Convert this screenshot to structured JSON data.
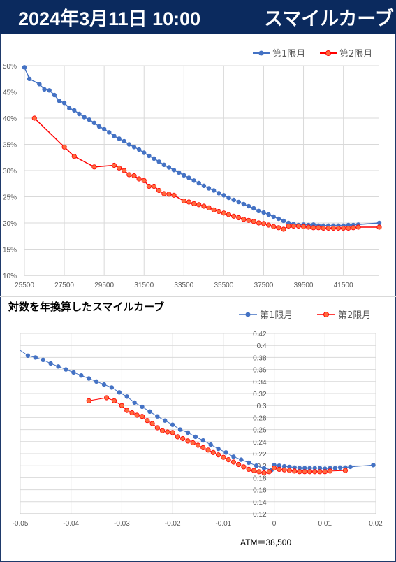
{
  "header": {
    "date": "2024年3月11日 10:00",
    "title": "スマイルカーブ"
  },
  "footer": {
    "atm": "ATM＝38,500"
  },
  "colors": {
    "first": "#4472c4",
    "second": "#ff0000",
    "second_fill": "#ff6a3d",
    "header_bg": "#0b2a5e",
    "grid": "#d9d9d9"
  },
  "chart_data": [
    {
      "type": "line",
      "title": "",
      "legend_position": "top-right",
      "xlim": [
        25500,
        43300
      ],
      "ylim": [
        0.1,
        0.5
      ],
      "x_ticks": [
        25500,
        27500,
        29500,
        31500,
        33500,
        35500,
        37500,
        39500,
        41500
      ],
      "x_tick_labels": [
        "25500",
        "27500",
        "29500",
        "31500",
        "33500",
        "35500",
        "37500",
        "39500",
        "41500"
      ],
      "y_ticks": [
        0.1,
        0.15,
        0.2,
        0.25,
        0.3,
        0.35,
        0.4,
        0.45,
        0.5
      ],
      "y_tick_labels": [
        "10%",
        "15%",
        "20%",
        "25%",
        "30%",
        "35%",
        "40%",
        "45%",
        "50%"
      ],
      "series": [
        {
          "name": "第1限月",
          "x": [
            25500,
            25750,
            26250,
            26500,
            26750,
            27000,
            27250,
            27500,
            27750,
            28000,
            28250,
            28500,
            28750,
            29000,
            29250,
            29500,
            29750,
            30000,
            30250,
            30500,
            30750,
            31000,
            31250,
            31500,
            31750,
            32000,
            32250,
            32500,
            32750,
            33000,
            33250,
            33500,
            33750,
            34000,
            34250,
            34500,
            34750,
            35000,
            35250,
            35500,
            35750,
            36000,
            36250,
            36500,
            36750,
            37000,
            37250,
            37500,
            37750,
            38000,
            38250,
            38500,
            38750,
            39000,
            39250,
            39500,
            39750,
            40000,
            40250,
            40500,
            40750,
            41000,
            41250,
            41500,
            41750,
            42000,
            42250,
            43300
          ],
          "y": [
            0.497,
            0.475,
            0.465,
            0.455,
            0.453,
            0.444,
            0.433,
            0.429,
            0.419,
            0.415,
            0.408,
            0.402,
            0.397,
            0.391,
            0.384,
            0.379,
            0.373,
            0.366,
            0.361,
            0.356,
            0.35,
            0.345,
            0.34,
            0.334,
            0.328,
            0.323,
            0.317,
            0.311,
            0.306,
            0.301,
            0.296,
            0.291,
            0.286,
            0.281,
            0.276,
            0.271,
            0.266,
            0.262,
            0.257,
            0.253,
            0.248,
            0.244,
            0.24,
            0.236,
            0.232,
            0.228,
            0.223,
            0.22,
            0.216,
            0.212,
            0.208,
            0.204,
            0.2,
            0.198,
            0.196,
            0.197,
            0.196,
            0.197,
            0.195,
            0.195,
            0.195,
            0.195,
            0.195,
            0.195,
            0.196,
            0.196,
            0.197,
            0.2
          ]
        },
        {
          "name": "第2限月",
          "x": [
            26000,
            27500,
            28000,
            29000,
            30000,
            30250,
            30500,
            30750,
            31000,
            31250,
            31500,
            31750,
            32000,
            32250,
            32500,
            32750,
            33000,
            33500,
            33750,
            34000,
            34250,
            34500,
            34750,
            35000,
            35250,
            35500,
            35750,
            36000,
            36250,
            36500,
            36750,
            37000,
            37250,
            37500,
            37750,
            38000,
            38250,
            38500,
            38750,
            39000,
            39250,
            39500,
            39750,
            40000,
            40250,
            40500,
            40750,
            41000,
            41250,
            41500,
            41750,
            42000,
            42250,
            43300
          ],
          "y": [
            0.4,
            0.345,
            0.327,
            0.307,
            0.31,
            0.305,
            0.3,
            0.292,
            0.29,
            0.284,
            0.281,
            0.27,
            0.27,
            0.262,
            0.256,
            0.255,
            0.253,
            0.242,
            0.24,
            0.237,
            0.235,
            0.232,
            0.229,
            0.225,
            0.222,
            0.219,
            0.216,
            0.213,
            0.21,
            0.207,
            0.205,
            0.203,
            0.2,
            0.199,
            0.196,
            0.193,
            0.191,
            0.188,
            0.194,
            0.194,
            0.194,
            0.193,
            0.192,
            0.191,
            0.191,
            0.19,
            0.19,
            0.19,
            0.19,
            0.19,
            0.19,
            0.191,
            0.192,
            0.192
          ]
        }
      ]
    },
    {
      "type": "scatter",
      "title": "対数を年換算したスマイルカーブ",
      "legend_position": "top-right",
      "xlim": [
        -0.05,
        0.02
      ],
      "ylim": [
        0.12,
        0.42
      ],
      "x_ticks": [
        -0.05,
        -0.04,
        -0.03,
        -0.02,
        -0.01,
        0,
        0.01,
        0.02
      ],
      "x_tick_labels": [
        "-0.05",
        "-0.04",
        "-0.03",
        "-0.02",
        "-0.01",
        "0",
        "0.01",
        "0.02"
      ],
      "y_ticks": [
        0.12,
        0.14,
        0.16,
        0.18,
        0.2,
        0.22,
        0.24,
        0.26,
        0.28,
        0.3,
        0.32,
        0.34,
        0.36,
        0.38,
        0.4,
        0.42
      ],
      "y_tick_labels": [
        "0.12",
        "0.14",
        "0.16",
        "0.18",
        "0.2",
        "0.22",
        "0.24",
        "0.26",
        "0.28",
        "0.3",
        "0.32",
        "0.34",
        "0.36",
        "0.38",
        "0.4",
        "0.42"
      ],
      "series": [
        {
          "name": "第1限月",
          "x": [
            -0.05,
            -0.0485,
            -0.047,
            -0.0455,
            -0.044,
            -0.0425,
            -0.041,
            -0.0395,
            -0.038,
            -0.0365,
            -0.035,
            -0.0335,
            -0.032,
            -0.0305,
            -0.029,
            -0.0275,
            -0.026,
            -0.0245,
            -0.023,
            -0.0215,
            -0.02,
            -0.0185,
            -0.017,
            -0.0155,
            -0.014,
            -0.0125,
            -0.011,
            -0.0095,
            -0.008,
            -0.0065,
            -0.005,
            -0.0035,
            -0.002,
            -0.0005,
            0.0,
            0.001,
            0.002,
            0.003,
            0.004,
            0.005,
            0.006,
            0.007,
            0.008,
            0.009,
            0.01,
            0.011,
            0.012,
            0.013,
            0.014,
            0.015,
            0.0195
          ],
          "y": [
            0.392,
            0.383,
            0.38,
            0.376,
            0.37,
            0.365,
            0.36,
            0.355,
            0.35,
            0.345,
            0.34,
            0.335,
            0.33,
            0.322,
            0.315,
            0.305,
            0.298,
            0.29,
            0.282,
            0.275,
            0.268,
            0.26,
            0.255,
            0.248,
            0.242,
            0.235,
            0.228,
            0.222,
            0.215,
            0.21,
            0.205,
            0.2,
            0.196,
            0.193,
            0.201,
            0.2,
            0.199,
            0.198,
            0.197,
            0.196,
            0.196,
            0.196,
            0.196,
            0.196,
            0.195,
            0.196,
            0.196,
            0.197,
            0.197,
            0.198,
            0.201
          ]
        },
        {
          "name": "第2限月",
          "x": [
            -0.0365,
            -0.033,
            -0.0315,
            -0.03,
            -0.029,
            -0.028,
            -0.027,
            -0.026,
            -0.025,
            -0.024,
            -0.023,
            -0.022,
            -0.021,
            -0.02,
            -0.019,
            -0.018,
            -0.017,
            -0.016,
            -0.015,
            -0.014,
            -0.013,
            -0.012,
            -0.011,
            -0.01,
            -0.009,
            -0.008,
            -0.007,
            -0.006,
            -0.005,
            -0.004,
            -0.003,
            -0.002,
            -0.001,
            0.0,
            0.001,
            0.002,
            0.003,
            0.004,
            0.005,
            0.006,
            0.007,
            0.008,
            0.009,
            0.01,
            0.011,
            0.014
          ],
          "y": [
            0.308,
            0.313,
            0.308,
            0.3,
            0.292,
            0.288,
            0.284,
            0.282,
            0.275,
            0.27,
            0.263,
            0.258,
            0.256,
            0.255,
            0.248,
            0.245,
            0.241,
            0.238,
            0.234,
            0.23,
            0.226,
            0.222,
            0.218,
            0.214,
            0.21,
            0.206,
            0.202,
            0.198,
            0.194,
            0.192,
            0.19,
            0.188,
            0.19,
            0.196,
            0.194,
            0.193,
            0.192,
            0.191,
            0.19,
            0.19,
            0.19,
            0.19,
            0.19,
            0.19,
            0.191,
            0.192
          ]
        }
      ]
    }
  ]
}
